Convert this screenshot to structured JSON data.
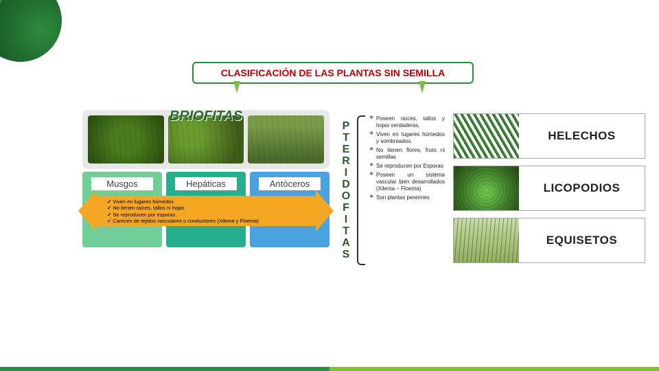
{
  "title": "CLASIFICACIÓN DE LAS PLANTAS SIN SEMILLA",
  "title_color": "#c00000",
  "title_border": "#2e8b3d",
  "accent_green": "#7ac142",
  "briofitas": {
    "heading": "BRIOFITAS",
    "heading_color": "#2e6b2e",
    "images_bg": "#e8e8e8",
    "types": [
      {
        "label": "Musgos",
        "color": "#6fcf97"
      },
      {
        "label": "Hepáticas",
        "color": "#27ae8e"
      },
      {
        "label": "Antóceros",
        "color": "#4aa3df"
      }
    ],
    "arrow_color": "#f5a623",
    "bullets": [
      "Viven en lugares  húmedos",
      "No tienen raíces, tallos ni hojas",
      "Se reproducen por esporas.",
      "Carecen de tejidos vasculares o conductores (Xilema y Floema)"
    ]
  },
  "pteridofitas": {
    "vertical_label": "PTERIDOFITAS",
    "label_color": "#2d5a2d",
    "bullets": [
      "Poseen raíces, tallos y hojas verdaderas.",
      "Viven en lugares húmedos y sombreados.",
      "No tienen flores, fruto ni semillas",
      "Se reproducen por Esporas",
      "Poseen un sistema vascular bien desarrollados (Xilema – Floema)",
      "Son plantas perennes"
    ],
    "cards": [
      {
        "label": "HELECHOS",
        "thumb": "fern"
      },
      {
        "label": "LICOPODIOS",
        "thumb": "lyco"
      },
      {
        "label": "EQUISETOS",
        "thumb": "equi"
      }
    ]
  },
  "footer": {
    "left": "#2e8b3d",
    "right": "#7ac142"
  }
}
